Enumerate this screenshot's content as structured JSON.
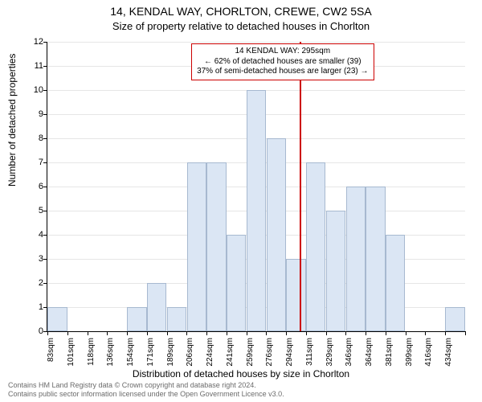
{
  "title_line1": "14, KENDAL WAY, CHORLTON, CREWE, CW2 5SA",
  "title_line2": "Size of property relative to detached houses in Chorlton",
  "ylabel": "Number of detached properties",
  "xlabel": "Distribution of detached houses by size in Chorlton",
  "footer_line1": "Contains HM Land Registry data © Crown copyright and database right 2024.",
  "footer_line2": "Contains public sector information licensed under the Open Government Licence v3.0.",
  "chart": {
    "type": "histogram",
    "ylim": [
      0,
      12
    ],
    "yticks": [
      0,
      1,
      2,
      3,
      4,
      5,
      6,
      7,
      8,
      9,
      10,
      11,
      12
    ],
    "xtick_labels": [
      "83sqm",
      "101sqm",
      "118sqm",
      "136sqm",
      "154sqm",
      "171sqm",
      "189sqm",
      "206sqm",
      "224sqm",
      "241sqm",
      "259sqm",
      "276sqm",
      "294sqm",
      "311sqm",
      "329sqm",
      "346sqm",
      "364sqm",
      "381sqm",
      "399sqm",
      "416sqm",
      "434sqm"
    ],
    "bar_values": [
      1,
      0,
      0,
      0,
      1,
      2,
      1,
      7,
      7,
      4,
      10,
      8,
      3,
      7,
      5,
      6,
      6,
      4,
      0,
      0,
      1
    ],
    "bar_color": "#dbe6f4",
    "bar_border_color": "#a7b9d0",
    "grid_color": "#e6e6e6",
    "background_color": "#ffffff",
    "axis_color": "#000000",
    "ref_line_color": "#cc0000",
    "ref_value_sqm": 295,
    "title_fontsize": 14,
    "subtitle_fontsize": 13,
    "label_fontsize": 12,
    "tick_fontsize": 10
  },
  "annotation": {
    "line1": "14 KENDAL WAY: 295sqm",
    "line2": "← 62% of detached houses are smaller (39)",
    "line3": "37% of semi-detached houses are larger (23) →",
    "border_color": "#cc0000",
    "background_color": "#ffffff",
    "fontsize": 10
  }
}
